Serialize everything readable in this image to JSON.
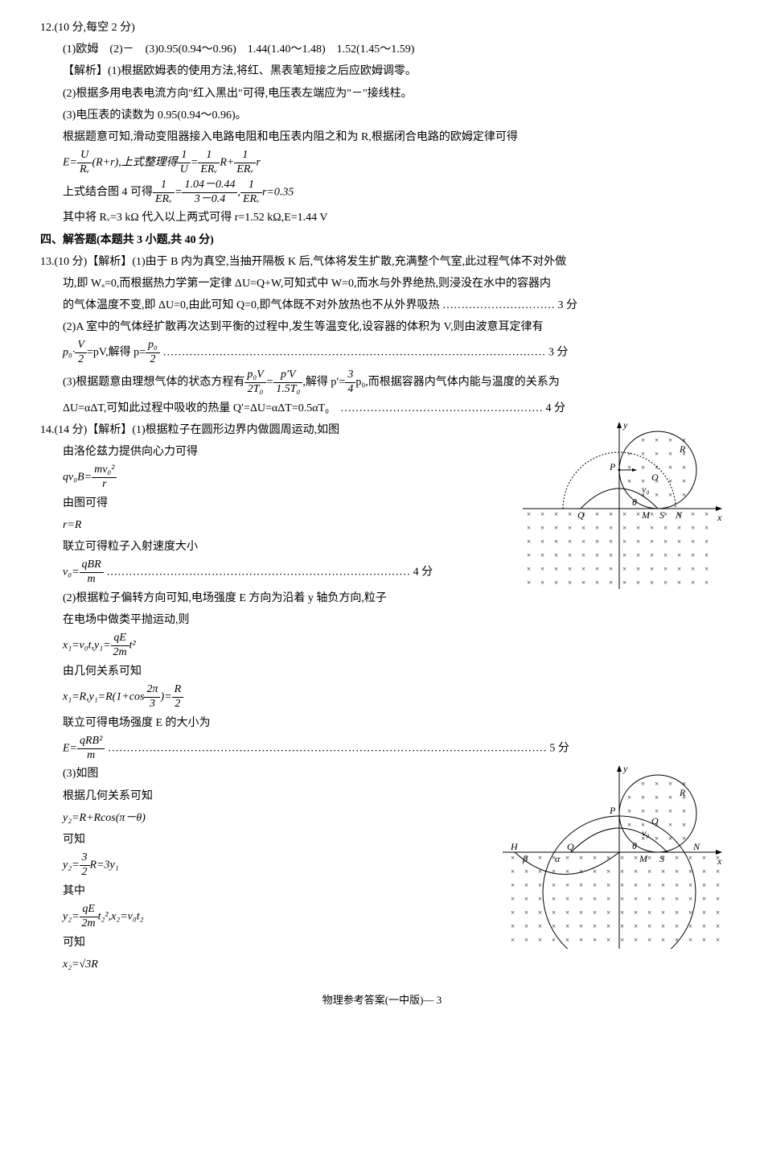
{
  "q12": {
    "header": "12.(10 分,每空 2 分)",
    "a1": "(1)欧姆　(2)－　(3)0.95(0.94～0.96)　1.44(1.40～1.48)　1.52(1.45～1.59)",
    "s1": "【解析】(1)根据欧姆表的使用方法,将红、黑表笔短接之后应欧姆调零。",
    "s2": "(2)根据多用电表电流方向\"红入黑出\"可得,电压表左端应为\"－\"接线柱。",
    "s3": "(3)电压表的读数为 0.95(0.94～0.96)。",
    "s4": "根据题意可知,滑动变阻器接入电路电阻和电压表内阻之和为 R,根据闭合电路的欧姆定律可得",
    "eq1_pre": "E=",
    "eq1_f1n": "U",
    "eq1_f1d": "Rᵥ",
    "eq1_mid": "(R+r),上式整理得",
    "eq1_f2n": "1",
    "eq1_f2d": "U",
    "eq1_eq": "=",
    "eq1_f3n": "1",
    "eq1_f3d": "ERᵥ",
    "eq1_R": "R+",
    "eq1_f4n": "1",
    "eq1_f4d": "ERᵥ",
    "eq1_r": "r",
    "s5": "上式结合图 4 可得",
    "eq2_f1n": "1",
    "eq2_f1d": "ERᵥ",
    "eq2_eq": "=",
    "eq2_f2n": "1.04－0.44",
    "eq2_f2d": "3－0.4",
    "eq2_c": ",",
    "eq2_f3n": "1",
    "eq2_f3d": "ERᵥ",
    "eq2_r": "r=0.35",
    "s6": "其中将 Rᵥ=3 kΩ 代入以上两式可得 r=1.52 kΩ,E=1.44 V"
  },
  "sec4": "四、解答题(本题共 3 小题,共 40 分)",
  "q13": {
    "l1": "13.(10 分)【解析】(1)由于 B 内为真空,当抽开隔板 K 后,气体将发生扩散,充满整个气室,此过程气体不对外做",
    "l2": "功,即 Wₐ=0,而根据热力学第一定律 ΔU=Q+W,可知式中 W=0,而水与外界绝热,则浸没在水中的容器内",
    "l3": "的气体温度不变,即 ΔU=0,由此可知 Q=0,即气体既不对外放热也不从外界吸热 ………………………… 3 分",
    "l4": "(2)A 室中的气体经扩散再次达到平衡的过程中,发生等温变化,设容器的体积为 V,则由波意耳定律有",
    "eq1_pre": "p₀·",
    "eq1_f1n": "V",
    "eq1_f1d": "2",
    "eq1_mid": "=pV,解得 p=",
    "eq1_f2n": "p₀",
    "eq1_f2d": "2",
    "eq1_dots": " ………………………………………………………………………………………… 3 分",
    "l5_pre": "(3)根据题意由理想气体的状态方程有",
    "eq2_f1n": "p₀V",
    "eq2_f1d": "2T₀",
    "eq2_eq": "=",
    "eq2_f2n": "p′V",
    "eq2_f2d": "1.5T₀",
    "eq2_mid": ",解得 p′=",
    "eq2_f3n": "3",
    "eq2_f3d": "4",
    "eq2_post": "p₀,而根据容器内气体内能与温度的关系为",
    "l6": "ΔU=αΔT,可知此过程中吸收的热量 Q′=ΔU=αΔT=0.5αT₀　……………………………………………… 4 分"
  },
  "q14": {
    "l1": "14.(14 分)【解析】(1)根据粒子在圆形边界内做圆周运动,如图",
    "l2": "由洛伦兹力提供向心力可得",
    "eq1_pre": "qv₀B=",
    "eq1_f1n": "mv₀²",
    "eq1_f1d": "r",
    "l3": "由图可得",
    "l4": "r=R",
    "l5": "联立可得粒子入射速度大小",
    "eq2_pre": "v₀=",
    "eq2_f1n": "qBR",
    "eq2_f1d": "m",
    "eq2_dots": " ……………………………………………………………………… 4 分",
    "l6": "(2)根据粒子偏转方向可知,电场强度 E 方向为沿着 y 轴负方向,粒子",
    "l7": "在电场中做类平抛运动,则",
    "eq3_x": "x₁=v₀t,y₁=",
    "eq3_f1n": "qE",
    "eq3_f1d": "2m",
    "eq3_t": "t²",
    "l8": "由几何关系可知",
    "eq4_x": "x₁=R,y₁=R(1+cos",
    "eq4_f1n": "2π",
    "eq4_f1d": "3",
    "eq4_post": ")=",
    "eq4_f2n": "R",
    "eq4_f2d": "2",
    "l9": "联立可得电场强度 E 的大小为",
    "eq5_pre": "E=",
    "eq5_f1n": "qRB²",
    "eq5_f1d": "m",
    "eq5_dots": " ……………………………………………………………………………………………………… 5 分",
    "l10": "(3)如图",
    "l11": "根据几何关系可知",
    "l12": "y₂=R+Rcos(π－θ)",
    "l13": "可知",
    "eq6_pre": "y₂=",
    "eq6_f1n": "3",
    "eq6_f1d": "2",
    "eq6_post": "R=3y₁",
    "l14": "其中",
    "eq7_pre": "y₂=",
    "eq7_f1n": "qE",
    "eq7_f1d": "2m",
    "eq7_post": "t₂²,x₂=v₀t₂",
    "l15": "可知",
    "l16": "x₂=√3R"
  },
  "footer": "物理参考答案(一中版)— 3",
  "fig1": {
    "ylabel": "y",
    "xlabel": "x",
    "labels": {
      "P": "P",
      "R": "R",
      "O": "O",
      "Q": "Q",
      "M": "M",
      "S": "S",
      "N": "N",
      "v0": "v₀",
      "theta": "θ"
    }
  },
  "fig2": {
    "ylabel": "y",
    "xlabel": "x",
    "labels": {
      "P": "P",
      "R": "R",
      "O": "O",
      "Q": "Q",
      "M": "M",
      "S": "S",
      "N": "N",
      "H": "H",
      "v0": "v₀",
      "theta": "θ",
      "alpha": "α",
      "beta": "β"
    }
  }
}
